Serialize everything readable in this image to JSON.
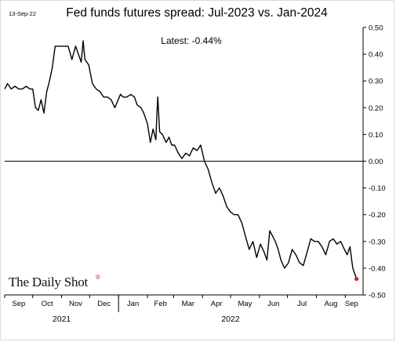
{
  "header": {
    "date": "13-Sep-22"
  },
  "chart_data": {
    "type": "line",
    "title": "Fed funds futures spread: Jul-2023 vs. Jan-2024",
    "xlabel": "",
    "ylabel": "",
    "ylim": [
      -0.5,
      0.5
    ],
    "yticks": [
      0.5,
      0.4,
      0.3,
      0.2,
      0.1,
      0.0,
      -0.1,
      -0.2,
      -0.3,
      -0.4,
      -0.5
    ],
    "ytick_labels": [
      "0.50",
      "0.40",
      "0.30",
      "0.20",
      "0.10",
      "0.00",
      "-0.10",
      "-0.20",
      "-0.30",
      "-0.40",
      "-0.50"
    ],
    "xlim": [
      "2021-09-01",
      "2022-09-20"
    ],
    "x_month_ticks": [
      {
        "label": "Sep",
        "date": "2021-09-01"
      },
      {
        "label": "Oct",
        "date": "2021-10-01"
      },
      {
        "label": "Nov",
        "date": "2021-11-01"
      },
      {
        "label": "Dec",
        "date": "2021-12-01"
      },
      {
        "label": "Jan",
        "date": "2022-01-01"
      },
      {
        "label": "Feb",
        "date": "2022-02-01"
      },
      {
        "label": "Mar",
        "date": "2022-03-01"
      },
      {
        "label": "Apr",
        "date": "2022-04-01"
      },
      {
        "label": "May",
        "date": "2022-05-01"
      },
      {
        "label": "Jun",
        "date": "2022-06-01"
      },
      {
        "label": "Jul",
        "date": "2022-07-01"
      },
      {
        "label": "Aug",
        "date": "2022-08-01"
      },
      {
        "label": "Sep",
        "date": "2022-09-01"
      }
    ],
    "x_year_labels": [
      {
        "label": "2021",
        "date": "2021-11-01"
      },
      {
        "label": "2022",
        "date": "2022-05-01"
      }
    ],
    "annotation": "Latest:  -0.44%",
    "zero_line": true,
    "grid": false,
    "series": [
      {
        "color": "#000000",
        "x": [
          "2021-09-01",
          "2021-09-04",
          "2021-09-08",
          "2021-09-12",
          "2021-09-16",
          "2021-09-20",
          "2021-09-24",
          "2021-09-28",
          "2021-10-01",
          "2021-10-04",
          "2021-10-07",
          "2021-10-10",
          "2021-10-13",
          "2021-10-16",
          "2021-10-19",
          "2021-10-22",
          "2021-10-25",
          "2021-10-28",
          "2021-11-01",
          "2021-11-04",
          "2021-11-08",
          "2021-11-12",
          "2021-11-16",
          "2021-11-19",
          "2021-11-22",
          "2021-11-24",
          "2021-11-26",
          "2021-11-30",
          "2021-12-04",
          "2021-12-08",
          "2021-12-12",
          "2021-12-16",
          "2021-12-20",
          "2021-12-24",
          "2021-12-28",
          "2022-01-03",
          "2022-01-06",
          "2022-01-10",
          "2022-01-14",
          "2022-01-18",
          "2022-01-21",
          "2022-01-25",
          "2022-01-28",
          "2022-02-01",
          "2022-02-04",
          "2022-02-07",
          "2022-02-10",
          "2022-02-11",
          "2022-02-12",
          "2022-02-14",
          "2022-02-17",
          "2022-02-21",
          "2022-02-24",
          "2022-02-27",
          "2022-03-02",
          "2022-03-06",
          "2022-03-10",
          "2022-03-14",
          "2022-03-18",
          "2022-03-22",
          "2022-03-26",
          "2022-03-30",
          "2022-04-03",
          "2022-04-07",
          "2022-04-11",
          "2022-04-15",
          "2022-04-19",
          "2022-04-23",
          "2022-04-27",
          "2022-05-01",
          "2022-05-05",
          "2022-05-09",
          "2022-05-13",
          "2022-05-17",
          "2022-05-21",
          "2022-05-25",
          "2022-05-29",
          "2022-06-02",
          "2022-06-06",
          "2022-06-09",
          "2022-06-12",
          "2022-06-15",
          "2022-06-18",
          "2022-06-21",
          "2022-06-24",
          "2022-06-28",
          "2022-07-02",
          "2022-07-06",
          "2022-07-10",
          "2022-07-14",
          "2022-07-18",
          "2022-07-22",
          "2022-07-26",
          "2022-07-30",
          "2022-08-03",
          "2022-08-07",
          "2022-08-11",
          "2022-08-15",
          "2022-08-19",
          "2022-08-23",
          "2022-08-27",
          "2022-08-31",
          "2022-09-03",
          "2022-09-06",
          "2022-09-09",
          "2022-09-13"
        ],
        "values": [
          0.27,
          0.29,
          0.27,
          0.28,
          0.27,
          0.27,
          0.28,
          0.27,
          0.27,
          0.2,
          0.19,
          0.23,
          0.18,
          0.26,
          0.3,
          0.35,
          0.43,
          0.43,
          0.43,
          0.43,
          0.43,
          0.38,
          0.43,
          0.4,
          0.37,
          0.45,
          0.38,
          0.36,
          0.29,
          0.27,
          0.26,
          0.24,
          0.24,
          0.23,
          0.2,
          0.25,
          0.24,
          0.24,
          0.25,
          0.24,
          0.21,
          0.2,
          0.18,
          0.14,
          0.07,
          0.12,
          0.08,
          0.17,
          0.24,
          0.11,
          0.1,
          0.07,
          0.09,
          0.06,
          0.06,
          0.03,
          0.01,
          0.03,
          0.02,
          0.05,
          0.04,
          0.06,
          0.0,
          -0.03,
          -0.08,
          -0.12,
          -0.1,
          -0.13,
          -0.17,
          -0.19,
          -0.2,
          -0.2,
          -0.23,
          -0.28,
          -0.33,
          -0.3,
          -0.36,
          -0.31,
          -0.34,
          -0.37,
          -0.26,
          -0.28,
          -0.3,
          -0.33,
          -0.37,
          -0.4,
          -0.38,
          -0.33,
          -0.35,
          -0.38,
          -0.39,
          -0.34,
          -0.29,
          -0.3,
          -0.3,
          -0.32,
          -0.35,
          -0.3,
          -0.29,
          -0.31,
          -0.3,
          -0.33,
          -0.35,
          -0.32,
          -0.4,
          -0.44
        ]
      }
    ],
    "latest_marker": {
      "date": "2022-09-13",
      "value": -0.44,
      "color": "#cc2222"
    }
  },
  "brand": {
    "text": "The Daily Shot",
    "mark": "®"
  }
}
